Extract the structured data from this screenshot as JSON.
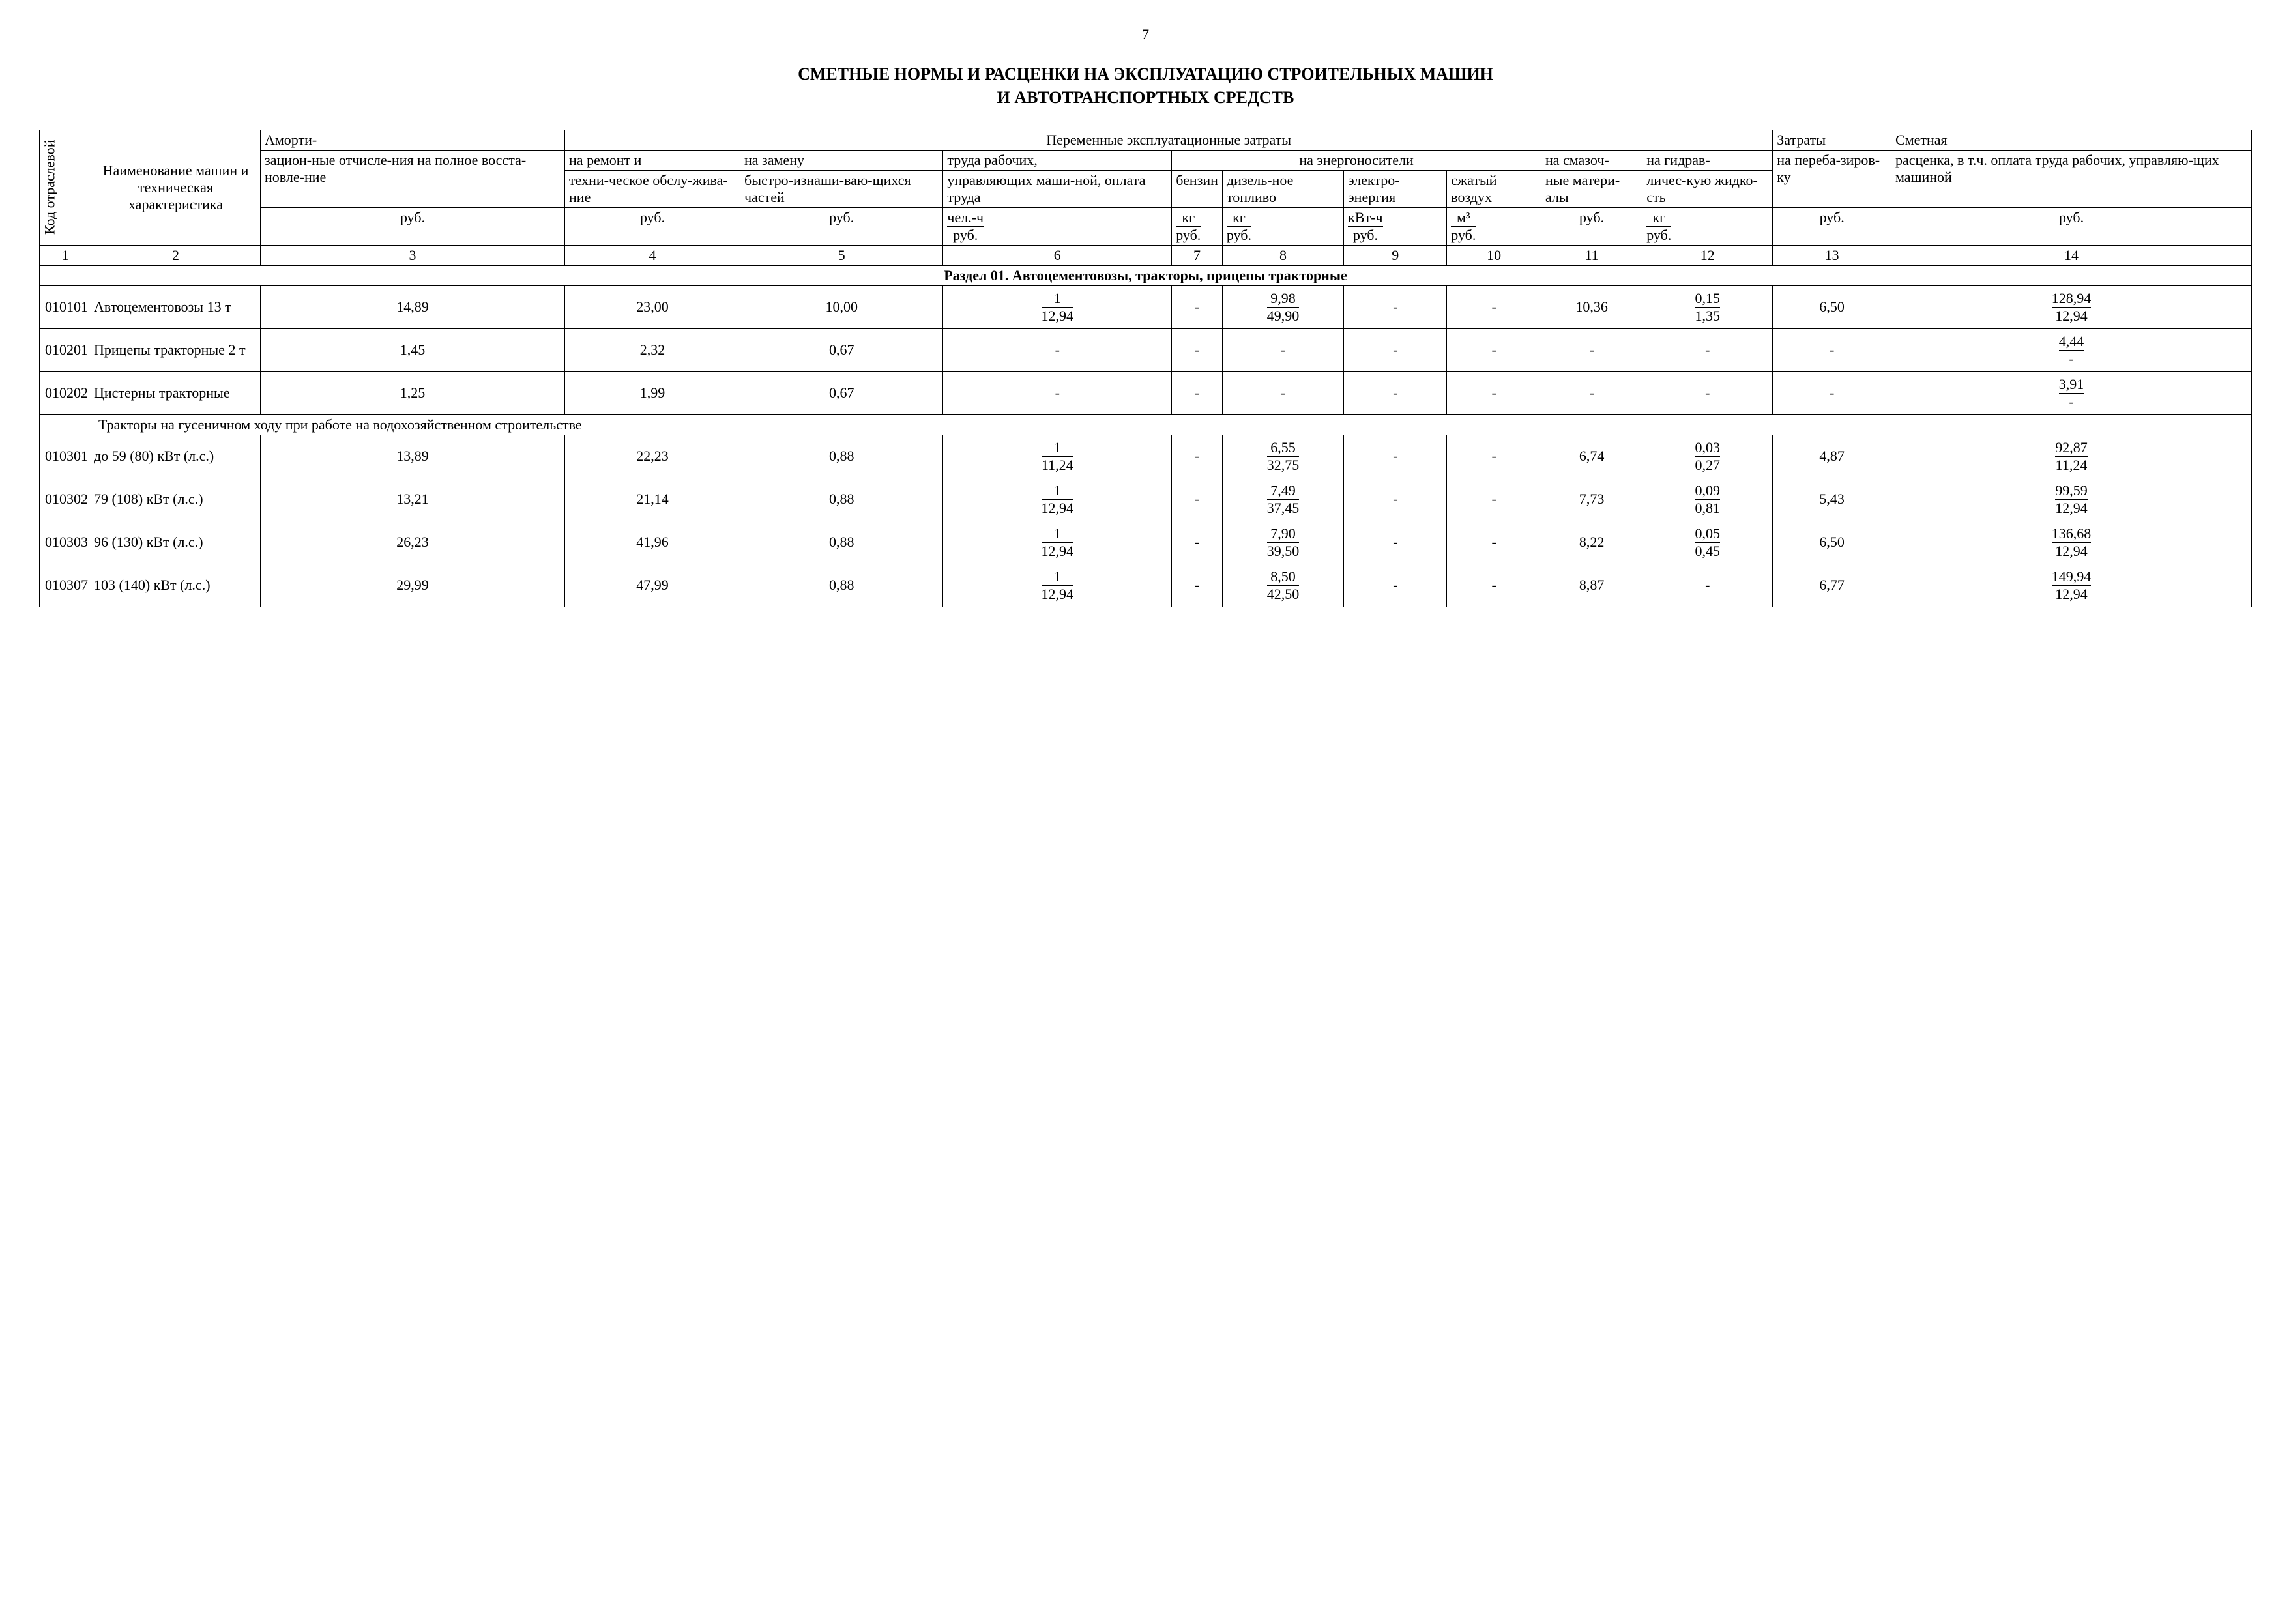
{
  "page_number": "7",
  "title_line1": "СМЕТНЫЕ НОРМЫ И РАСЦЕНКИ НА ЭКСПЛУАТАЦИЮ СТРОИТЕЛЬНЫХ МАШИН",
  "title_line2": "И АВТОТРАНСПОРТНЫХ СРЕДСТВ",
  "headers": {
    "col1": "Код отраслевой",
    "col2": "Наименование машин и техническая характеристика",
    "col3_top": "Аморти-",
    "col3": "зацион-ные отчисле-ния на полное восста-новле-ние",
    "var_costs": "Переменные эксплуатационные затраты",
    "col4_top": "на ремонт и",
    "col4": "техни-ческое обслу-жива-ние",
    "col5_top": "на замену",
    "col5": "быстро-изнаши-ваю-щихся частей",
    "col6_top": "труда рабочих,",
    "col6": "управляющих маши-ной, оплата труда",
    "energy": "на энергоносители",
    "col7": "бензин",
    "col8": "дизель-ное топливо",
    "col9": "электро-энергия",
    "col10": "сжатый воздух",
    "col11_top": "на смазоч-",
    "col11": "ные матери-алы",
    "col12_top": "на гидрав-",
    "col12": "личес-кую жидко-сть",
    "col13_top": "Затраты",
    "col13": "на переба-зиров-ку",
    "col14_top": "Сметная",
    "col14": "расценка, в т.ч. оплата труда рабочих, управляю-щих машиной",
    "u_rub": "руб.",
    "u6_top": "чел.-ч",
    "u6_bot": "руб.",
    "u7_top": "кг",
    "u7_bot": "руб.",
    "u8_top": "кг",
    "u8_bot": "руб.",
    "u9_top": "кВт-ч",
    "u9_bot": "руб.",
    "u10_top": "м³",
    "u10_bot": "руб.",
    "u12_top": "кг",
    "u12_bot": "руб."
  },
  "colnums": [
    "1",
    "2",
    "3",
    "4",
    "5",
    "6",
    "7",
    "8",
    "9",
    "10",
    "11",
    "12",
    "13",
    "14"
  ],
  "section1": "Раздел 01. Автоцементовозы, тракторы, прицепы тракторные",
  "subgroup1": "Тракторы на гусеничном ходу при работе на водохозяйственном строительстве",
  "rows": [
    {
      "code": "010101",
      "name": "Автоцементовозы 13 т",
      "c3": "14,89",
      "c4": "23,00",
      "c5": "10,00",
      "c6t": "1",
      "c6b": "12,94",
      "c7": "-",
      "c8t": "9,98",
      "c8b": "49,90",
      "c9": "-",
      "c10": "-",
      "c11": "10,36",
      "c12t": "0,15",
      "c12b": "1,35",
      "c13": "6,50",
      "c14t": "128,94",
      "c14b": "12,94"
    },
    {
      "code": "010201",
      "name": "Прицепы тракторные 2 т",
      "c3": "1,45",
      "c4": "2,32",
      "c5": "0,67",
      "c6": "-",
      "c7": "-",
      "c8": "-",
      "c9": "-",
      "c10": "-",
      "c11": "-",
      "c12": "-",
      "c13": "-",
      "c14t": "4,44",
      "c14b": "-"
    },
    {
      "code": "010202",
      "name": "Цистерны тракторные",
      "c3": "1,25",
      "c4": "1,99",
      "c5": "0,67",
      "c6": "-",
      "c7": "-",
      "c8": "-",
      "c9": "-",
      "c10": "-",
      "c11": "-",
      "c12": "-",
      "c13": "-",
      "c14t": "3,91",
      "c14b": "-"
    },
    {
      "code": "010301",
      "name": "до 59 (80) кВт (л.с.)",
      "c3": "13,89",
      "c4": "22,23",
      "c5": "0,88",
      "c6t": "1",
      "c6b": "11,24",
      "c7": "-",
      "c8t": "6,55",
      "c8b": "32,75",
      "c9": "-",
      "c10": "-",
      "c11": "6,74",
      "c12t": "0,03",
      "c12b": "0,27",
      "c13": "4,87",
      "c14t": "92,87",
      "c14b": "11,24"
    },
    {
      "code": "010302",
      "name": "79 (108) кВт (л.с.)",
      "c3": "13,21",
      "c4": "21,14",
      "c5": "0,88",
      "c6t": "1",
      "c6b": "12,94",
      "c7": "-",
      "c8t": "7,49",
      "c8b": "37,45",
      "c9": "-",
      "c10": "-",
      "c11": "7,73",
      "c12t": "0,09",
      "c12b": "0,81",
      "c13": "5,43",
      "c14t": "99,59",
      "c14b": "12,94"
    },
    {
      "code": "010303",
      "name": "96 (130) кВт (л.с.)",
      "c3": "26,23",
      "c4": "41,96",
      "c5": "0,88",
      "c6t": "1",
      "c6b": "12,94",
      "c7": "-",
      "c8t": "7,90",
      "c8b": "39,50",
      "c9": "-",
      "c10": "-",
      "c11": "8,22",
      "c12t": "0,05",
      "c12b": "0,45",
      "c13": "6,50",
      "c14t": "136,68",
      "c14b": "12,94"
    },
    {
      "code": "010307",
      "name": "103 (140) кВт (л.с.)",
      "c3": "29,99",
      "c4": "47,99",
      "c5": "0,88",
      "c6t": "1",
      "c6b": "12,94",
      "c7": "-",
      "c8t": "8,50",
      "c8b": "42,50",
      "c9": "-",
      "c10": "-",
      "c11": "8,87",
      "c12": "-",
      "c13": "6,77",
      "c14t": "149,94",
      "c14b": "12,94"
    }
  ]
}
